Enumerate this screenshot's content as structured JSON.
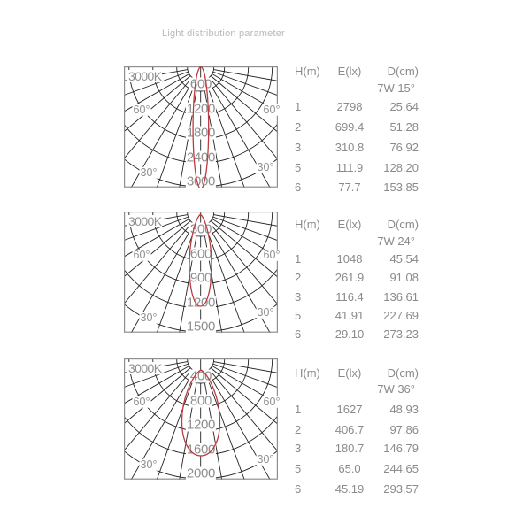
{
  "page_title": "Light distribution parameter",
  "colors": {
    "curve_red": "#bf3a3e",
    "grid_black": "#222222",
    "diagram_label_gray": "#8f8f8f",
    "table_text_gray": "#8a8a8a",
    "title_gray": "#b9b9b9",
    "box_border_gray": "#8f8f8f"
  },
  "angle_labels": {
    "sixty": "60°",
    "thirty": "30°"
  },
  "chart_data": [
    {
      "type": "line",
      "subtype": "photometric-polar-curve",
      "name": "7W 15°",
      "beam_angle_deg": 15,
      "cct_label": "3000K",
      "radial_tick_labels": [
        "600",
        "1200",
        "1800",
        "2400",
        "3000"
      ],
      "angle_tick_labels": [
        "60°",
        "30°"
      ],
      "angle_grid_step_deg": 10,
      "table": {
        "columns": [
          "H(m)",
          "E(lx)",
          "D(cm)"
        ],
        "spec_label": "7W 15°",
        "rows": [
          [
            "1",
            "2798",
            "25.64"
          ],
          [
            "2",
            "699.4",
            "51.28"
          ],
          [
            "3",
            "310.8",
            "76.92"
          ],
          [
            "5",
            "111.9",
            "128.20"
          ],
          [
            "6",
            "77.7",
            "153.85"
          ]
        ]
      }
    },
    {
      "type": "line",
      "subtype": "photometric-polar-curve",
      "name": "7W 24°",
      "beam_angle_deg": 24,
      "cct_label": "3000K",
      "radial_tick_labels": [
        "300",
        "600",
        "900",
        "1200",
        "1500"
      ],
      "angle_tick_labels": [
        "60°",
        "30°"
      ],
      "angle_grid_step_deg": 10,
      "table": {
        "columns": [
          "H(m)",
          "E(lx)",
          "D(cm)"
        ],
        "spec_label": "7W 24°",
        "rows": [
          [
            "1",
            "1048",
            "45.54"
          ],
          [
            "2",
            "261.9",
            "91.08"
          ],
          [
            "3",
            "116.4",
            "136.61"
          ],
          [
            "5",
            "41.91",
            "227.69"
          ],
          [
            "6",
            "29.10",
            "273.23"
          ]
        ]
      }
    },
    {
      "type": "line",
      "subtype": "photometric-polar-curve",
      "name": "7W 36°",
      "beam_angle_deg": 36,
      "cct_label": "3000K",
      "radial_tick_labels": [
        "400",
        "800",
        "1200",
        "1600",
        "2000"
      ],
      "angle_tick_labels": [
        "60°",
        "30°"
      ],
      "angle_grid_step_deg": 10,
      "table": {
        "columns": [
          "H(m)",
          "E(lx)",
          "D(cm)"
        ],
        "spec_label": "7W 36°",
        "rows": [
          [
            "1",
            "1627",
            "48.93"
          ],
          [
            "2",
            "406.7",
            "97.86"
          ],
          [
            "3",
            "180.7",
            "146.79"
          ],
          [
            "5",
            "65.0",
            "244.65"
          ],
          [
            "6",
            "45.19",
            "293.57"
          ]
        ]
      }
    }
  ]
}
